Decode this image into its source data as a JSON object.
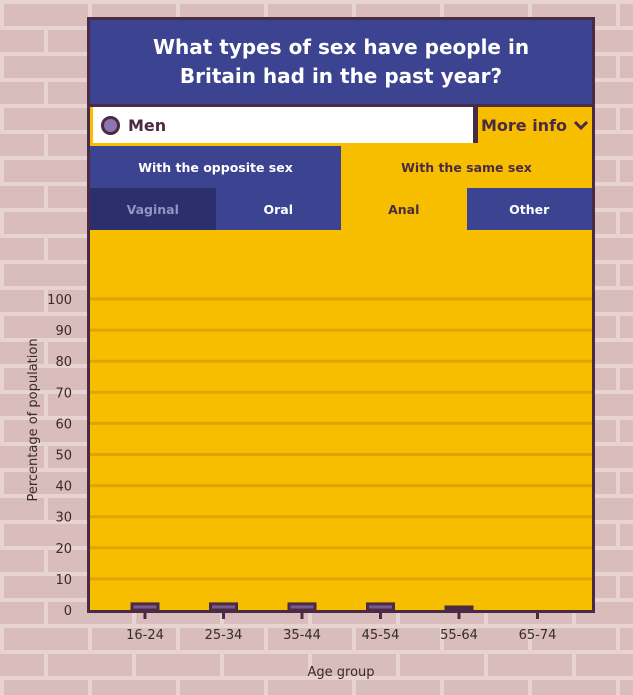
{
  "header": {
    "title": "What types of sex have people in Britain had in the past year?"
  },
  "gender_selector": {
    "selected_label": "Men"
  },
  "more_info": {
    "label": "More info",
    "icon": "chevron-down-icon"
  },
  "partner_tabs": [
    {
      "label": "With the opposite sex",
      "active": false
    },
    {
      "label": "With the same sex",
      "active": true
    }
  ],
  "sex_type_tabs": [
    {
      "label": "Vaginal",
      "state": "disabled"
    },
    {
      "label": "Oral",
      "state": "inactive"
    },
    {
      "label": "Anal",
      "state": "active"
    },
    {
      "label": "Other",
      "state": "inactive"
    }
  ],
  "colors": {
    "brand_blue": "#3c4391",
    "accent_yellow": "#f7be00",
    "outline": "#4b2a44",
    "bar_fill": "#7a5a8e",
    "background_brick": "#d7b8b8"
  },
  "chart_data": {
    "type": "bar",
    "xlabel": "Age group",
    "ylabel": "Percentage of population",
    "categories": [
      "16-24",
      "25-34",
      "35-44",
      "45-54",
      "55-64",
      "65-74"
    ],
    "values": [
      1,
      1,
      1,
      1,
      0.5,
      0
    ],
    "ylim": [
      0,
      100
    ],
    "yticks": [
      "0",
      "10",
      "20",
      "30",
      "40",
      "50",
      "60",
      "70",
      "80",
      "90",
      "100"
    ],
    "grid": true
  }
}
